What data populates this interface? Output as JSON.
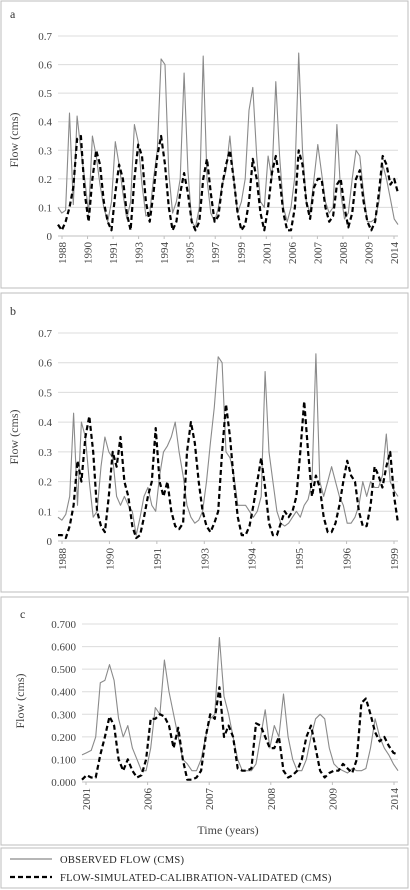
{
  "colors": {
    "observed": "#8a8a8a",
    "simulated": "#000000"
  },
  "xlabel": "Time (years)",
  "legend": {
    "observed": "OBSERVED FLOW (CMS)",
    "simulated": "FLOW-SIMULATED-CALIBRATION-VALIDATED (CMS)"
  },
  "chart_data": [
    {
      "panel": "a",
      "type": "line",
      "ylabel": "Flow (cms)",
      "ylim": [
        0,
        0.7
      ],
      "yticks": [
        "0",
        "0.1",
        "0.2",
        "0.3",
        "0.4",
        "0.5",
        "0.6",
        "0.7"
      ],
      "xticks": [
        "1988",
        "1990",
        "1991",
        "1993",
        "1994",
        "1995",
        "1997",
        "1999",
        "2001",
        "2006",
        "2007",
        "2008",
        "2009",
        "2014"
      ],
      "grid": true,
      "series": [
        {
          "key": "observed",
          "values": [
            0.1,
            0.08,
            0.09,
            0.43,
            0.11,
            0.42,
            0.3,
            0.2,
            0.08,
            0.35,
            0.28,
            0.18,
            0.1,
            0.05,
            0.12,
            0.33,
            0.25,
            0.15,
            0.06,
            0.12,
            0.39,
            0.33,
            0.18,
            0.07,
            0.08,
            0.2,
            0.3,
            0.62,
            0.6,
            0.22,
            0.08,
            0.12,
            0.2,
            0.57,
            0.23,
            0.05,
            0.03,
            0.1,
            0.63,
            0.2,
            0.08,
            0.05,
            0.1,
            0.18,
            0.23,
            0.35,
            0.2,
            0.08,
            0.12,
            0.2,
            0.44,
            0.52,
            0.28,
            0.12,
            0.1,
            0.28,
            0.2,
            0.54,
            0.28,
            0.1,
            0.05,
            0.1,
            0.21,
            0.64,
            0.3,
            0.12,
            0.08,
            0.2,
            0.32,
            0.22,
            0.12,
            0.08,
            0.1,
            0.39,
            0.15,
            0.06,
            0.08,
            0.2,
            0.3,
            0.28,
            0.15,
            0.05,
            0.05,
            0.06,
            0.12,
            0.25,
            0.2,
            0.13,
            0.06,
            0.04
          ]
        },
        {
          "key": "simulated",
          "values": [
            0.04,
            0.02,
            0.05,
            0.1,
            0.17,
            0.34,
            0.35,
            0.15,
            0.05,
            0.2,
            0.3,
            0.25,
            0.12,
            0.05,
            0.02,
            0.15,
            0.25,
            0.2,
            0.08,
            0.02,
            0.2,
            0.32,
            0.28,
            0.12,
            0.05,
            0.15,
            0.28,
            0.35,
            0.25,
            0.1,
            0.02,
            0.05,
            0.15,
            0.22,
            0.15,
            0.05,
            0.02,
            0.05,
            0.2,
            0.27,
            0.15,
            0.05,
            0.07,
            0.18,
            0.25,
            0.3,
            0.2,
            0.08,
            0.02,
            0.04,
            0.12,
            0.27,
            0.2,
            0.08,
            0.02,
            0.1,
            0.22,
            0.28,
            0.2,
            0.08,
            0.02,
            0.02,
            0.1,
            0.3,
            0.25,
            0.12,
            0.06,
            0.17,
            0.2,
            0.2,
            0.1,
            0.05,
            0.07,
            0.18,
            0.2,
            0.1,
            0.03,
            0.08,
            0.2,
            0.23,
            0.12,
            0.05,
            0.02,
            0.05,
            0.15,
            0.28,
            0.25,
            0.18,
            0.2,
            0.15
          ]
        }
      ]
    },
    {
      "panel": "b",
      "type": "line",
      "ylabel": "Flow (cms)",
      "ylim": [
        0,
        0.7
      ],
      "yticks": [
        "0",
        "0.1",
        "0.2",
        "0.3",
        "0.4",
        "0.5",
        "0.6",
        "0.7"
      ],
      "xticks": [
        "1988",
        "1990",
        "1991",
        "1993",
        "1994",
        "1995",
        "1996",
        "1999"
      ],
      "grid": true,
      "series": [
        {
          "key": "observed",
          "values": [
            0.08,
            0.07,
            0.09,
            0.15,
            0.43,
            0.12,
            0.4,
            0.35,
            0.2,
            0.08,
            0.1,
            0.25,
            0.35,
            0.3,
            0.28,
            0.15,
            0.12,
            0.15,
            0.12,
            0.1,
            0.02,
            0.08,
            0.15,
            0.18,
            0.12,
            0.1,
            0.22,
            0.3,
            0.32,
            0.35,
            0.4,
            0.3,
            0.22,
            0.12,
            0.08,
            0.06,
            0.07,
            0.1,
            0.2,
            0.33,
            0.45,
            0.62,
            0.6,
            0.3,
            0.28,
            0.22,
            0.12,
            0.12,
            0.12,
            0.1,
            0.08,
            0.1,
            0.15,
            0.57,
            0.3,
            0.2,
            0.1,
            0.06,
            0.05,
            0.06,
            0.08,
            0.1,
            0.08,
            0.12,
            0.14,
            0.2,
            0.63,
            0.2,
            0.15,
            0.2,
            0.25,
            0.2,
            0.15,
            0.12,
            0.06,
            0.06,
            0.08,
            0.12,
            0.2,
            0.15,
            0.2,
            0.18,
            0.18,
            0.22,
            0.36,
            0.2,
            0.17,
            0.15
          ]
        },
        {
          "key": "simulated",
          "values": [
            0.02,
            0.02,
            0.01,
            0.05,
            0.12,
            0.27,
            0.2,
            0.35,
            0.42,
            0.3,
            0.1,
            0.05,
            0.03,
            0.15,
            0.3,
            0.25,
            0.35,
            0.2,
            0.15,
            0.05,
            0.01,
            0.02,
            0.08,
            0.15,
            0.2,
            0.38,
            0.2,
            0.15,
            0.2,
            0.1,
            0.05,
            0.04,
            0.06,
            0.3,
            0.4,
            0.33,
            0.2,
            0.1,
            0.05,
            0.03,
            0.06,
            0.1,
            0.3,
            0.46,
            0.35,
            0.2,
            0.08,
            0.02,
            0.02,
            0.05,
            0.12,
            0.2,
            0.28,
            0.18,
            0.06,
            0.02,
            0.02,
            0.06,
            0.1,
            0.08,
            0.1,
            0.15,
            0.3,
            0.47,
            0.3,
            0.15,
            0.22,
            0.18,
            0.08,
            0.03,
            0.03,
            0.06,
            0.12,
            0.2,
            0.27,
            0.22,
            0.2,
            0.1,
            0.05,
            0.05,
            0.12,
            0.25,
            0.22,
            0.18,
            0.25,
            0.3,
            0.15,
            0.06
          ]
        }
      ]
    },
    {
      "panel": "c",
      "type": "line",
      "ylabel": "Flow (cms)",
      "ylim": [
        0,
        0.7
      ],
      "yticks": [
        "0.000",
        "0.100",
        "0.200",
        "0.300",
        "0.400",
        "0.500",
        "0.600",
        "0.700"
      ],
      "xticks": [
        "2001",
        "2006",
        "2007",
        "2008",
        "2009",
        "2014"
      ],
      "grid": true,
      "series": [
        {
          "key": "observed",
          "values": [
            0.12,
            0.13,
            0.14,
            0.2,
            0.44,
            0.45,
            0.52,
            0.45,
            0.28,
            0.2,
            0.25,
            0.15,
            0.1,
            0.05,
            0.05,
            0.15,
            0.33,
            0.3,
            0.54,
            0.4,
            0.3,
            0.2,
            0.1,
            0.08,
            0.05,
            0.05,
            0.1,
            0.2,
            0.28,
            0.3,
            0.64,
            0.38,
            0.3,
            0.2,
            0.1,
            0.05,
            0.05,
            0.05,
            0.08,
            0.2,
            0.32,
            0.15,
            0.25,
            0.2,
            0.39,
            0.2,
            0.1,
            0.05,
            0.05,
            0.1,
            0.2,
            0.28,
            0.3,
            0.28,
            0.15,
            0.08,
            0.06,
            0.05,
            0.04,
            0.06,
            0.05,
            0.05,
            0.06,
            0.15,
            0.28,
            0.2,
            0.15,
            0.12,
            0.08,
            0.05
          ]
        },
        {
          "key": "simulated",
          "values": [
            0.01,
            0.03,
            0.02,
            0.02,
            0.12,
            0.2,
            0.29,
            0.25,
            0.1,
            0.05,
            0.1,
            0.05,
            0.02,
            0.03,
            0.1,
            0.28,
            0.28,
            0.3,
            0.29,
            0.25,
            0.15,
            0.24,
            0.1,
            0.01,
            0.01,
            0.02,
            0.05,
            0.2,
            0.3,
            0.28,
            0.42,
            0.2,
            0.25,
            0.2,
            0.06,
            0.05,
            0.05,
            0.06,
            0.26,
            0.25,
            0.2,
            0.15,
            0.15,
            0.2,
            0.05,
            0.02,
            0.03,
            0.05,
            0.1,
            0.2,
            0.25,
            0.15,
            0.05,
            0.02,
            0.04,
            0.05,
            0.05,
            0.08,
            0.06,
            0.04,
            0.1,
            0.35,
            0.37,
            0.3,
            0.22,
            0.18,
            0.2,
            0.16,
            0.13,
            0.12
          ]
        }
      ]
    }
  ]
}
